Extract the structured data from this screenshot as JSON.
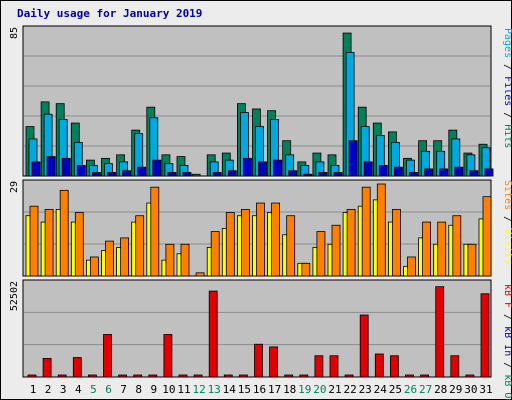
{
  "title": "Daily usage for January 2019",
  "colors": {
    "hits": "#00805c",
    "files": "#00a8e0",
    "pages": "#0000c0",
    "visits": "#ffff00",
    "sites": "#ff8000",
    "kbf": "#e00000",
    "kbin": "#0000a8",
    "kbout": "#00805c",
    "weekend": "#008060",
    "weekday": "#000000",
    "panel_bg": "#c0c0c0",
    "grid": "#8c8c8c"
  },
  "legends": {
    "top": [
      {
        "text": "Pages",
        "color": "#00a8e0"
      },
      {
        "text": " / ",
        "color": "#000000"
      },
      {
        "text": "Files",
        "color": "#0000c0"
      },
      {
        "text": " / ",
        "color": "#000000"
      },
      {
        "text": "Hits",
        "color": "#00805c"
      }
    ],
    "middle": [
      {
        "text": "Sites",
        "color": "#ff8000"
      },
      {
        "text": " / ",
        "color": "#000000"
      },
      {
        "text": "Visits",
        "color": "#ffff00"
      }
    ],
    "bottom": [
      {
        "text": "kB F",
        "color": "#e00000"
      },
      {
        "text": " / ",
        "color": "#000000"
      },
      {
        "text": "kB In",
        "color": "#0000a8"
      },
      {
        "text": " / ",
        "color": "#000000"
      },
      {
        "text": "kB Out",
        "color": "#00805c"
      }
    ]
  },
  "chart_data": [
    {
      "type": "bar",
      "panel": "hits-files-pages",
      "ymax_label": "85",
      "ylim": [
        0,
        85
      ],
      "categories": [
        "1",
        "2",
        "3",
        "4",
        "5",
        "6",
        "7",
        "8",
        "9",
        "10",
        "11",
        "12",
        "13",
        "14",
        "15",
        "16",
        "17",
        "18",
        "19",
        "20",
        "21",
        "22",
        "23",
        "24",
        "25",
        "26",
        "27",
        "28",
        "29",
        "30",
        "31"
      ],
      "weekend_days": [
        5,
        6,
        12,
        13,
        19,
        20,
        26,
        27
      ],
      "series": [
        {
          "name": "Hits",
          "values": [
            28,
            42,
            41,
            30,
            9,
            10,
            12,
            26,
            39,
            12,
            11,
            1,
            12,
            13,
            41,
            38,
            37,
            20,
            8,
            13,
            12,
            81,
            39,
            30,
            25,
            10,
            20,
            20,
            26,
            13,
            18
          ]
        },
        {
          "name": "Files",
          "values": [
            21,
            35,
            32,
            19,
            6,
            7,
            8,
            24,
            33,
            7,
            6,
            0,
            8,
            9,
            36,
            28,
            32,
            12,
            6,
            8,
            6,
            70,
            28,
            23,
            19,
            9,
            14,
            14,
            21,
            12,
            16
          ]
        },
        {
          "name": "Pages",
          "values": [
            8,
            11,
            10,
            6,
            2,
            2,
            3,
            5,
            9,
            2,
            2,
            0,
            2,
            3,
            10,
            8,
            9,
            3,
            1,
            2,
            2,
            20,
            8,
            6,
            5,
            2,
            4,
            4,
            5,
            3,
            4
          ]
        }
      ]
    },
    {
      "type": "bar",
      "panel": "sites-visits",
      "ymax_label": "29",
      "ylim": [
        0,
        29
      ],
      "categories": [
        "1",
        "2",
        "3",
        "4",
        "5",
        "6",
        "7",
        "8",
        "9",
        "10",
        "11",
        "12",
        "13",
        "14",
        "15",
        "16",
        "17",
        "18",
        "19",
        "20",
        "21",
        "22",
        "23",
        "24",
        "25",
        "26",
        "27",
        "28",
        "29",
        "30",
        "31"
      ],
      "series": [
        {
          "name": "Sites",
          "values": [
            22,
            21,
            27,
            20,
            6,
            11,
            12,
            19,
            28,
            10,
            10,
            1,
            14,
            20,
            21,
            23,
            23,
            19,
            4,
            14,
            16,
            21,
            28,
            29,
            21,
            6,
            17,
            17,
            19,
            10,
            25
          ]
        },
        {
          "name": "Visits",
          "values": [
            19,
            17,
            21,
            17,
            5,
            8,
            9,
            17,
            23,
            5,
            7,
            0,
            9,
            15,
            19,
            19,
            20,
            13,
            4,
            9,
            10,
            20,
            22,
            24,
            17,
            3,
            12,
            10,
            16,
            10,
            18
          ]
        }
      ]
    },
    {
      "type": "bar",
      "panel": "kb",
      "ymax_label": "52502",
      "ylim": [
        0,
        52502
      ],
      "categories": [
        "1",
        "2",
        "3",
        "4",
        "5",
        "6",
        "7",
        "8",
        "9",
        "10",
        "11",
        "12",
        "13",
        "14",
        "15",
        "16",
        "17",
        "18",
        "19",
        "20",
        "21",
        "22",
        "23",
        "24",
        "25",
        "26",
        "27",
        "28",
        "29",
        "30",
        "31"
      ],
      "series": [
        {
          "name": "kB F",
          "values": [
            100,
            10500,
            100,
            11000,
            100,
            24000,
            100,
            100,
            100,
            24000,
            100,
            100,
            48500,
            100,
            100,
            18500,
            17000,
            100,
            100,
            12000,
            12000,
            100,
            35000,
            13000,
            12000,
            100,
            100,
            51000,
            12000,
            100,
            47000
          ]
        },
        {
          "name": "kB In",
          "values": [
            0,
            0,
            0,
            0,
            0,
            0,
            0,
            0,
            0,
            0,
            0,
            0,
            0,
            0,
            0,
            0,
            0,
            0,
            0,
            0,
            0,
            0,
            0,
            0,
            0,
            0,
            0,
            0,
            0,
            0,
            0
          ]
        },
        {
          "name": "kB Out",
          "values": [
            0,
            0,
            0,
            0,
            0,
            0,
            0,
            0,
            0,
            0,
            0,
            0,
            0,
            0,
            0,
            0,
            0,
            0,
            0,
            0,
            0,
            0,
            0,
            0,
            0,
            0,
            0,
            0,
            0,
            0,
            0
          ]
        }
      ]
    }
  ]
}
